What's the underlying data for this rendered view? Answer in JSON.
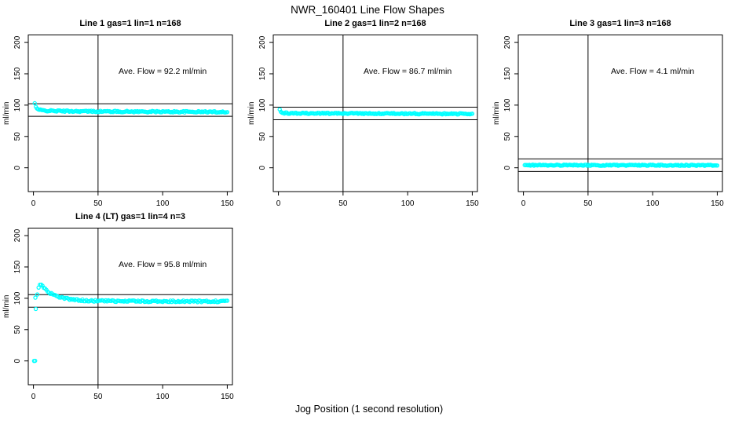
{
  "figure": {
    "title": "NWR_160401  Line Flow Shapes",
    "xlabel": "Jog Position (1 second resolution)",
    "background": "#FFFFFF",
    "point_color": "#00FFFF",
    "axis_color": "#000000"
  },
  "chart_data": [
    {
      "type": "scatter",
      "title": "Line 1 gas=1 lin=1 n=168",
      "annotation": "Ave. Flow =  92.2  ml/min",
      "ave_flow": 92.2,
      "n": 168,
      "num_points": 168,
      "ylabel": "ml/min",
      "xlim": [
        -4,
        154
      ],
      "ylim": [
        -38,
        212
      ],
      "xticks": [
        0,
        50,
        100,
        150
      ],
      "yticks": [
        0,
        50,
        100,
        150,
        200
      ],
      "vline_x": 50,
      "hlines": [
        102.2,
        82.2
      ],
      "annotation_xy": [
        100,
        150
      ],
      "x_range": [
        1,
        150
      ],
      "jitter": 1.1,
      "keypoints": [
        [
          1,
          103
        ],
        [
          2,
          96.5
        ],
        [
          3,
          94
        ],
        [
          4,
          92.8
        ],
        [
          6,
          91.8
        ],
        [
          9,
          91.2
        ],
        [
          15,
          90.8
        ],
        [
          25,
          90.4
        ],
        [
          45,
          90
        ],
        [
          75,
          89.7
        ],
        [
          110,
          89.4
        ],
        [
          150,
          89.2
        ]
      ],
      "outliers": []
    },
    {
      "type": "scatter",
      "title": "Line 2 gas=1 lin=2 n=168",
      "annotation": "Ave. Flow =  86.7  ml/min",
      "ave_flow": 86.7,
      "n": 168,
      "num_points": 168,
      "ylabel": "ml/min",
      "xlim": [
        -4,
        154
      ],
      "ylim": [
        -38,
        212
      ],
      "xticks": [
        0,
        50,
        100,
        150
      ],
      "yticks": [
        0,
        50,
        100,
        150,
        200
      ],
      "vline_x": 50,
      "hlines": [
        96.7,
        76.7
      ],
      "annotation_xy": [
        100,
        150
      ],
      "x_range": [
        1,
        150
      ],
      "jitter": 1.0,
      "keypoints": [
        [
          1,
          93
        ],
        [
          2,
          88.8
        ],
        [
          3,
          87.6
        ],
        [
          5,
          87.2
        ],
        [
          10,
          87
        ],
        [
          30,
          86.8
        ],
        [
          70,
          86.5
        ],
        [
          110,
          86.3
        ],
        [
          150,
          86.1
        ]
      ],
      "outliers": []
    },
    {
      "type": "scatter",
      "title": "Line 3 gas=1 lin=3 n=168",
      "annotation": "Ave. Flow =  4.1  ml/min",
      "ave_flow": 4.1,
      "n": 168,
      "num_points": 168,
      "ylabel": "ml/min",
      "xlim": [
        -4,
        154
      ],
      "ylim": [
        -38,
        212
      ],
      "xticks": [
        0,
        50,
        100,
        150
      ],
      "yticks": [
        0,
        50,
        100,
        150,
        200
      ],
      "vline_x": 50,
      "hlines": [
        14.1,
        -5.9
      ],
      "annotation_xy": [
        100,
        150
      ],
      "x_range": [
        1,
        150
      ],
      "jitter": 0.9,
      "keypoints": [
        [
          1,
          4.3
        ],
        [
          30,
          4.1
        ],
        [
          80,
          4.0
        ],
        [
          150,
          4.0
        ]
      ],
      "outliers": []
    },
    {
      "type": "scatter",
      "title": "Line 4 (LT) gas=1 lin=4 n=3",
      "annotation": "Ave. Flow =  95.8  ml/min",
      "ave_flow": 95.8,
      "n": 3,
      "num_points": 148,
      "ylabel": "ml/min",
      "xlim": [
        -4,
        154
      ],
      "ylim": [
        -38,
        212
      ],
      "xticks": [
        0,
        50,
        100,
        150
      ],
      "yticks": [
        0,
        50,
        100,
        150,
        200
      ],
      "vline_x": 50,
      "hlines": [
        105.8,
        85.8
      ],
      "annotation_xy": [
        100,
        150
      ],
      "x_range": [
        3,
        150
      ],
      "jitter": 1.3,
      "keypoints": [
        [
          3,
          106
        ],
        [
          3.5,
          112
        ],
        [
          4,
          117
        ],
        [
          5,
          121.5
        ],
        [
          6,
          122.5
        ],
        [
          7,
          120.5
        ],
        [
          8,
          117.5
        ],
        [
          10,
          113
        ],
        [
          12,
          109.5
        ],
        [
          15,
          106
        ],
        [
          18,
          103.5
        ],
        [
          22,
          101
        ],
        [
          26,
          99.2
        ],
        [
          30,
          98
        ],
        [
          36,
          96.9
        ],
        [
          44,
          96.1
        ],
        [
          55,
          95.6
        ],
        [
          70,
          95.3
        ],
        [
          95,
          95.2
        ],
        [
          120,
          95.1
        ],
        [
          150,
          94.9
        ]
      ],
      "outliers": [
        [
          0.5,
          0
        ],
        [
          1.3,
          0.2
        ],
        [
          1.8,
          83
        ],
        [
          1.5,
          101
        ]
      ]
    }
  ]
}
